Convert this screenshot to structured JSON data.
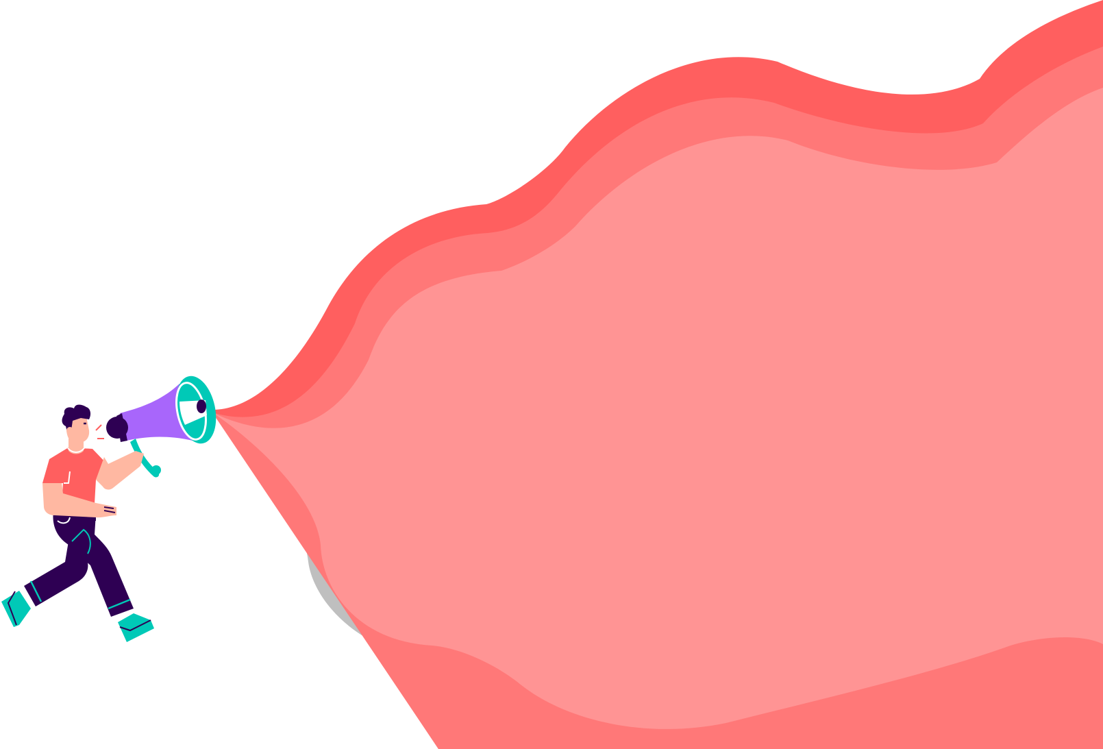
{
  "scene": {
    "subject": "person-running-with-megaphone",
    "elements": [
      "speech-cloud",
      "megaphone",
      "person"
    ]
  },
  "colors": {
    "background": "#ffffff",
    "cloud_shadow": "#bfbfbf",
    "cloud_outer": "#ff5f5f",
    "cloud_middle": "#ff7878",
    "cloud_inner": "#ff9494",
    "megaphone_body": "#a866fb",
    "megaphone_bell": "#00c9b7",
    "megaphone_dark": "#2e0053",
    "skin": "#ffb8a2",
    "shirt": "#ff5f5f",
    "pants": "#2e0053",
    "shoes": "#00c9b7",
    "hair": "#2e0053"
  }
}
